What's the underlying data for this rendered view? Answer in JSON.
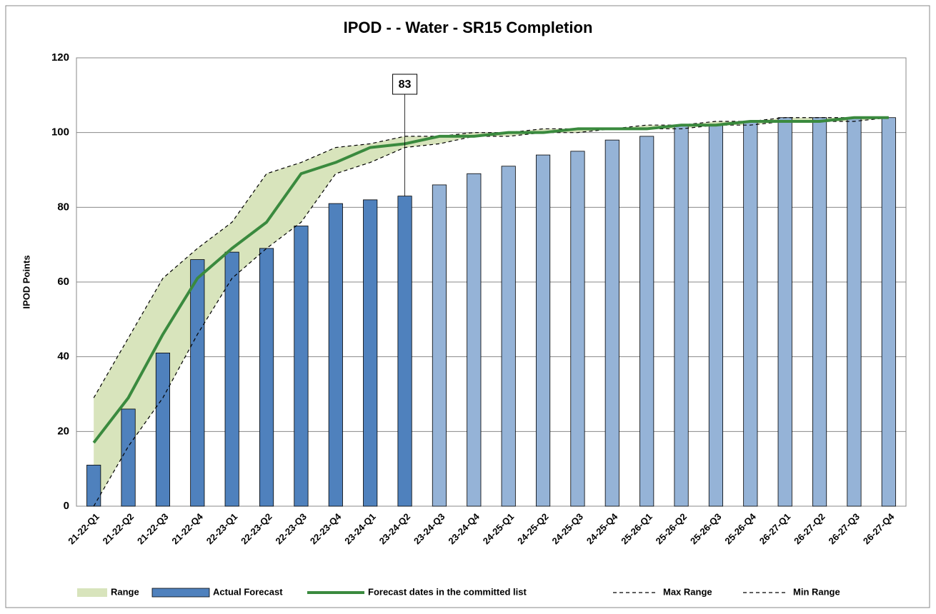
{
  "chart_data": {
    "type": "bar",
    "title": "IPOD -  - Water - SR15 Completion",
    "y_label": "IPOD Points",
    "categories": [
      "21-22-Q1",
      "21-22-Q2",
      "21-22-Q3",
      "21-22-Q4",
      "22-23-Q1",
      "22-23-Q2",
      "22-23-Q3",
      "22-23-Q4",
      "23-24-Q1",
      "23-24-Q2",
      "23-24-Q3",
      "23-24-Q4",
      "24-25-Q1",
      "24-25-Q2",
      "24-25-Q3",
      "24-25-Q4",
      "25-26-Q1",
      "25-26-Q2",
      "25-26-Q3",
      "25-26-Q4",
      "26-27-Q1",
      "26-27-Q2",
      "26-27-Q3",
      "26-27-Q4"
    ],
    "ylim": [
      0,
      120
    ],
    "yticks": [
      0,
      20,
      40,
      60,
      80,
      100,
      120
    ],
    "grid": true,
    "band": {
      "name": "Range",
      "color": "#d8e4bc"
    },
    "series": [
      {
        "name": "Actual Forecast",
        "type": "bar",
        "color": "#4f81bd",
        "colors": [
          "#4f81bd",
          "#4f81bd",
          "#4f81bd",
          "#4f81bd",
          "#4f81bd",
          "#4f81bd",
          "#4f81bd",
          "#4f81bd",
          "#4f81bd",
          "#4f81bd",
          "#95b3d7",
          "#95b3d7",
          "#95b3d7",
          "#95b3d7",
          "#95b3d7",
          "#95b3d7",
          "#95b3d7",
          "#95b3d7",
          "#95b3d7",
          "#95b3d7",
          "#95b3d7",
          "#95b3d7",
          "#95b3d7",
          "#95b3d7"
        ],
        "values": [
          11,
          26,
          41,
          66,
          68,
          69,
          75,
          81,
          82,
          83,
          86,
          89,
          91,
          94,
          95,
          98,
          99,
          102,
          102,
          103,
          104,
          104,
          104,
          104
        ]
      },
      {
        "name": "Forecast dates in the committed list",
        "type": "line",
        "color": "#3a8a3e",
        "values": [
          17,
          29,
          46,
          61,
          69,
          76,
          89,
          92,
          96,
          97,
          99,
          99,
          100,
          100,
          101,
          101,
          101,
          102,
          102,
          103,
          103,
          103,
          104,
          104
        ]
      },
      {
        "name": "Max Range",
        "type": "dashed",
        "color": "#000000",
        "values": [
          29,
          45,
          61,
          69,
          76,
          89,
          92,
          96,
          97,
          99,
          99,
          100,
          100,
          101,
          101,
          101,
          102,
          102,
          103,
          103,
          104,
          104,
          104,
          104
        ]
      },
      {
        "name": "Min Range",
        "type": "dashed",
        "color": "#000000",
        "values": [
          0,
          16,
          29,
          46,
          61,
          69,
          76,
          89,
          92,
          96,
          97,
          99,
          99,
          100,
          100,
          101,
          101,
          101,
          102,
          102,
          103,
          103,
          103,
          104
        ]
      }
    ],
    "annotations": [
      {
        "x": "23-24-Q2",
        "value": 83
      }
    ]
  }
}
